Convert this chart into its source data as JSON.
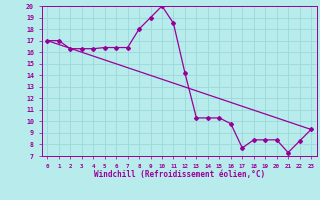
{
  "xlabel": "Windchill (Refroidissement éolien,°C)",
  "line_color": "#990099",
  "bg_color": "#b8ecec",
  "grid_color": "#99d9d9",
  "xlim": [
    -0.5,
    23.5
  ],
  "ylim": [
    7,
    20
  ],
  "xticks": [
    0,
    1,
    2,
    3,
    4,
    5,
    6,
    7,
    8,
    9,
    10,
    11,
    12,
    13,
    14,
    15,
    16,
    17,
    18,
    19,
    20,
    21,
    22,
    23
  ],
  "yticks": [
    7,
    8,
    9,
    10,
    11,
    12,
    13,
    14,
    15,
    16,
    17,
    18,
    19,
    20
  ],
  "line1_x": [
    0,
    1,
    2,
    3,
    4,
    5,
    6,
    7,
    8,
    9,
    10,
    11,
    12,
    13,
    14,
    15,
    16,
    17,
    18,
    19,
    20,
    21,
    22,
    23
  ],
  "line1_y": [
    17.0,
    17.0,
    16.3,
    16.3,
    16.3,
    16.4,
    16.4,
    16.4,
    18.0,
    19.0,
    20.0,
    18.5,
    14.2,
    10.3,
    10.3,
    10.3,
    9.8,
    7.7,
    8.4,
    8.4,
    8.4,
    7.3,
    8.3,
    9.3
  ],
  "line2_x": [
    0,
    23
  ],
  "line2_y": [
    17.0,
    9.3
  ]
}
